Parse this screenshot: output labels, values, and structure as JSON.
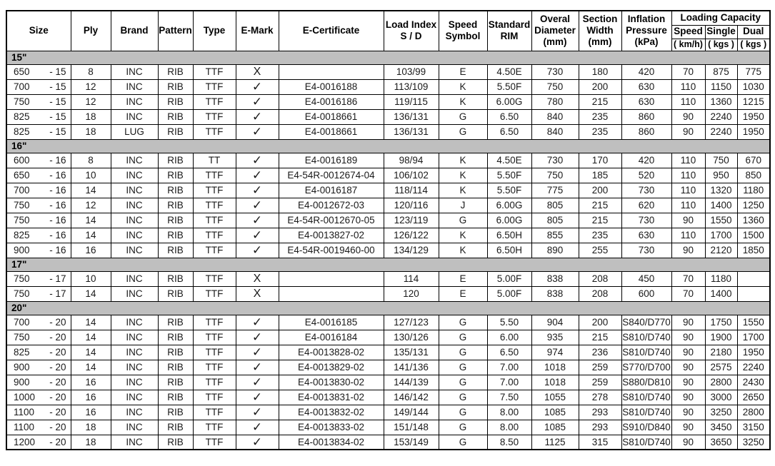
{
  "table": {
    "header": {
      "size": "Size",
      "ply": "Ply",
      "brand": "Brand",
      "pattern": "Pattern",
      "type": "Type",
      "emark": "E-Mark",
      "ecert": "E-Certificate",
      "load_index_1": "Load Index",
      "load_index_2": "S / D",
      "speed_symbol_1": "Speed",
      "speed_symbol_2": "Symbol",
      "standard_rim_1": "Standard",
      "standard_rim_2": "RIM",
      "overal_diameter_1": "Overal",
      "overal_diameter_2": "Diameter",
      "overal_diameter_3": "(mm)",
      "section_width_1": "Section",
      "section_width_2": "Width",
      "section_width_3": "(mm)",
      "inflation_pressure_1": "Inflation",
      "inflation_pressure_2": "Pressure",
      "inflation_pressure_3": "(kPa)",
      "loading_capacity": "Loading Capacity",
      "lc_speed": "Speed",
      "lc_single": "Single",
      "lc_dual": "Dual",
      "lc_speed_unit": "( km/h)",
      "lc_single_unit": "( kgs )",
      "lc_dual_unit": "( kgs )"
    },
    "colors": {
      "section_band": "#bfbfbf",
      "border": "#000000",
      "background": "#ffffff"
    },
    "sections": [
      {
        "label": "15\"",
        "rows": [
          [
            "650",
            "- 15",
            "8",
            "INC",
            "RIB",
            "TTF",
            "X",
            "",
            "103/99",
            "E",
            "4.50E",
            "730",
            "180",
            "420",
            "70",
            "875",
            "775"
          ],
          [
            "700",
            "- 15",
            "12",
            "INC",
            "RIB",
            "TTF",
            "✓",
            "E4-0016188",
            "113/109",
            "K",
            "5.50F",
            "750",
            "200",
            "630",
            "110",
            "1150",
            "1030"
          ],
          [
            "750",
            "- 15",
            "12",
            "INC",
            "RIB",
            "TTF",
            "✓",
            "E4-0016186",
            "119/115",
            "K",
            "6.00G",
            "780",
            "215",
            "630",
            "110",
            "1360",
            "1215"
          ],
          [
            "825",
            "- 15",
            "18",
            "INC",
            "RIB",
            "TTF",
            "✓",
            "E4-0018661",
            "136/131",
            "G",
            "6.50",
            "840",
            "235",
            "860",
            "90",
            "2240",
            "1950"
          ],
          [
            "825",
            "- 15",
            "18",
            "LUG",
            "RIB",
            "TTF",
            "✓",
            "E4-0018661",
            "136/131",
            "G",
            "6.50",
            "840",
            "235",
            "860",
            "90",
            "2240",
            "1950"
          ]
        ]
      },
      {
        "label": "16\"",
        "rows": [
          [
            "600",
            "- 16",
            "8",
            "INC",
            "RIB",
            "TT",
            "✓",
            "E4-0016189",
            "98/94",
            "K",
            "4.50E",
            "730",
            "170",
            "420",
            "110",
            "750",
            "670"
          ],
          [
            "650",
            "- 16",
            "10",
            "INC",
            "RIB",
            "TTF",
            "✓",
            "E4-54R-0012674-04",
            "106/102",
            "K",
            "5.50F",
            "750",
            "185",
            "520",
            "110",
            "950",
            "850"
          ],
          [
            "700",
            "- 16",
            "14",
            "INC",
            "RIB",
            "TTF",
            "✓",
            "E4-0016187",
            "118/114",
            "K",
            "5.50F",
            "775",
            "200",
            "730",
            "110",
            "1320",
            "1180"
          ],
          [
            "750",
            "- 16",
            "12",
            "INC",
            "RIB",
            "TTF",
            "✓",
            "E4-0012672-03",
            "120/116",
            "J",
            "6.00G",
            "805",
            "215",
            "620",
            "110",
            "1400",
            "1250"
          ],
          [
            "750",
            "- 16",
            "14",
            "INC",
            "RIB",
            "TTF",
            "✓",
            "E4-54R-0012670-05",
            "123/119",
            "G",
            "6.00G",
            "805",
            "215",
            "730",
            "90",
            "1550",
            "1360"
          ],
          [
            "825",
            "- 16",
            "14",
            "INC",
            "RIB",
            "TTF",
            "✓",
            "E4-0013827-02",
            "126/122",
            "K",
            "6.50H",
            "855",
            "235",
            "630",
            "110",
            "1700",
            "1500"
          ],
          [
            "900",
            "- 16",
            "16",
            "INC",
            "RIB",
            "TTF",
            "✓",
            "E4-54R-0019460-00",
            "134/129",
            "K",
            "6.50H",
            "890",
            "255",
            "730",
            "90",
            "2120",
            "1850"
          ]
        ]
      },
      {
        "label": "17\"",
        "rows": [
          [
            "750",
            "- 17",
            "10",
            "INC",
            "RIB",
            "TTF",
            "X",
            "",
            "114",
            "E",
            "5.00F",
            "838",
            "208",
            "450",
            "70",
            "1180",
            ""
          ],
          [
            "750",
            "- 17",
            "14",
            "INC",
            "RIB",
            "TTF",
            "X",
            "",
            "120",
            "E",
            "5.00F",
            "838",
            "208",
            "600",
            "70",
            "1400",
            ""
          ]
        ]
      },
      {
        "label": "20\"",
        "rows": [
          [
            "700",
            "- 20",
            "14",
            "INC",
            "RIB",
            "TTF",
            "✓",
            "E4-0016185",
            "127/123",
            "G",
            "5.50",
            "904",
            "200",
            "S840/D770",
            "90",
            "1750",
            "1550"
          ],
          [
            "750",
            "- 20",
            "14",
            "INC",
            "RIB",
            "TTF",
            "✓",
            "E4-0016184",
            "130/126",
            "G",
            "6.00",
            "935",
            "215",
            "S810/D740",
            "90",
            "1900",
            "1700"
          ],
          [
            "825",
            "- 20",
            "14",
            "INC",
            "RIB",
            "TTF",
            "✓",
            "E4-0013828-02",
            "135/131",
            "G",
            "6.50",
            "974",
            "236",
            "S810/D740",
            "90",
            "2180",
            "1950"
          ],
          [
            "900",
            "- 20",
            "14",
            "INC",
            "RIB",
            "TTF",
            "✓",
            "E4-0013829-02",
            "141/136",
            "G",
            "7.00",
            "1018",
            "259",
            "S770/D700",
            "90",
            "2575",
            "2240"
          ],
          [
            "900",
            "- 20",
            "16",
            "INC",
            "RIB",
            "TTF",
            "✓",
            "E4-0013830-02",
            "144/139",
            "G",
            "7.00",
            "1018",
            "259",
            "S880/D810",
            "90",
            "2800",
            "2430"
          ],
          [
            "1000",
            "- 20",
            "16",
            "INC",
            "RIB",
            "TTF",
            "✓",
            "E4-0013831-02",
            "146/142",
            "G",
            "7.50",
            "1055",
            "278",
            "S810/D740",
            "90",
            "3000",
            "2650"
          ],
          [
            "1100",
            "- 20",
            "16",
            "INC",
            "RIB",
            "TTF",
            "✓",
            "E4-0013832-02",
            "149/144",
            "G",
            "8.00",
            "1085",
            "293",
            "S810/D740",
            "90",
            "3250",
            "2800"
          ],
          [
            "1100",
            "- 20",
            "18",
            "INC",
            "RIB",
            "TTF",
            "✓",
            "E4-0013833-02",
            "151/148",
            "G",
            "8.00",
            "1085",
            "293",
            "S910/D840",
            "90",
            "3450",
            "3150"
          ],
          [
            "1200",
            "- 20",
            "18",
            "INC",
            "RIB",
            "TTF",
            "✓",
            "E4-0013834-02",
            "153/149",
            "G",
            "8.50",
            "1125",
            "315",
            "S810/D740",
            "90",
            "3650",
            "3250"
          ]
        ]
      }
    ]
  }
}
